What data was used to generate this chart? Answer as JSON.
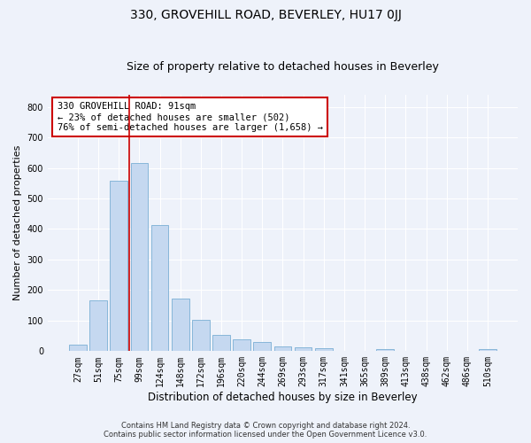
{
  "title": "330, GROVEHILL ROAD, BEVERLEY, HU17 0JJ",
  "subtitle": "Size of property relative to detached houses in Beverley",
  "xlabel": "Distribution of detached houses by size in Beverley",
  "ylabel": "Number of detached properties",
  "bar_color": "#c5d8f0",
  "bar_edgecolor": "#7aafd4",
  "background_color": "#eef2fa",
  "grid_color": "#ffffff",
  "categories": [
    "27sqm",
    "51sqm",
    "75sqm",
    "99sqm",
    "124sqm",
    "148sqm",
    "172sqm",
    "196sqm",
    "220sqm",
    "244sqm",
    "269sqm",
    "293sqm",
    "317sqm",
    "341sqm",
    "365sqm",
    "389sqm",
    "413sqm",
    "438sqm",
    "462sqm",
    "486sqm",
    "510sqm"
  ],
  "values": [
    20,
    165,
    558,
    616,
    412,
    172,
    103,
    52,
    38,
    30,
    15,
    14,
    10,
    0,
    0,
    8,
    0,
    0,
    0,
    0,
    8
  ],
  "vline_x_index": 2.5,
  "vline_color": "#cc0000",
  "annotation_text": "330 GROVEHILL ROAD: 91sqm\n← 23% of detached houses are smaller (502)\n76% of semi-detached houses are larger (1,658) →",
  "annotation_box_color": "#ffffff",
  "annotation_box_edgecolor": "#cc0000",
  "ylim": [
    0,
    840
  ],
  "yticks": [
    0,
    100,
    200,
    300,
    400,
    500,
    600,
    700,
    800
  ],
  "footer": "Contains HM Land Registry data © Crown copyright and database right 2024.\nContains public sector information licensed under the Open Government Licence v3.0.",
  "title_fontsize": 10,
  "subtitle_fontsize": 9,
  "xlabel_fontsize": 8.5,
  "ylabel_fontsize": 8,
  "tick_fontsize": 7,
  "annotation_fontsize": 7.5,
  "footer_fontsize": 6
}
